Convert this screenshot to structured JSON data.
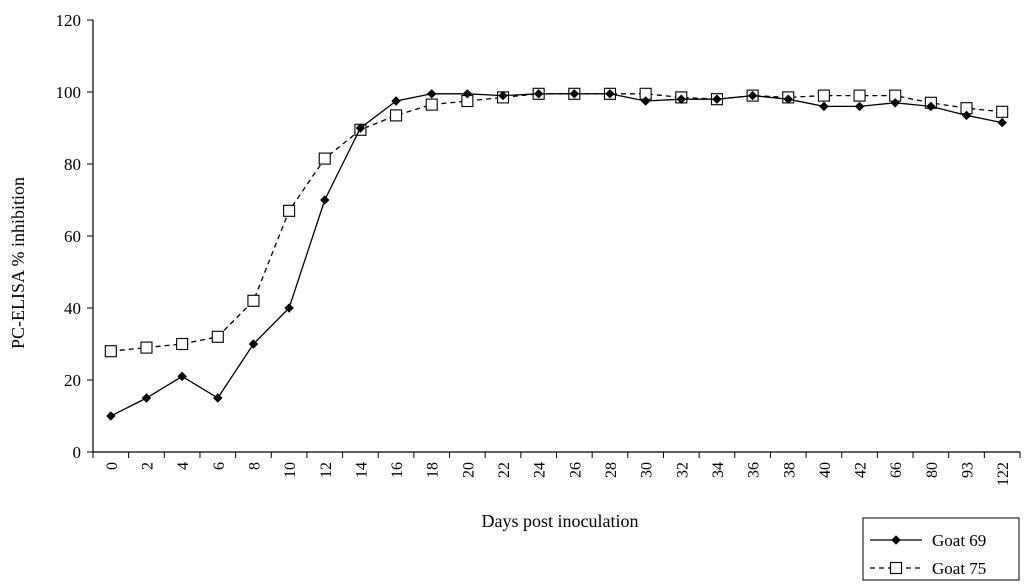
{
  "chart_data": {
    "type": "line",
    "xlabel": "Days post inoculation",
    "ylabel": "PC-ELISA % inhibition",
    "ylim": [
      0,
      120
    ],
    "yticks": [
      0,
      20,
      40,
      60,
      80,
      100,
      120
    ],
    "grid": false,
    "legend_position": "bottom-right",
    "categories": [
      "0",
      "2",
      "4",
      "6",
      "8",
      "10",
      "12",
      "14",
      "16",
      "18",
      "20",
      "22",
      "24",
      "26",
      "28",
      "30",
      "32",
      "34",
      "36",
      "38",
      "40",
      "42",
      "66",
      "80",
      "93",
      "122"
    ],
    "series": [
      {
        "name": "Goat 69",
        "marker": "diamond-filled",
        "line": "solid",
        "color": "#000000",
        "values": [
          10,
          15,
          21,
          15,
          30,
          40,
          70,
          90,
          97.5,
          99.5,
          99.5,
          99,
          99.5,
          99.5,
          99.5,
          97.5,
          98,
          98,
          99,
          98,
          96,
          96,
          97,
          96,
          93.5,
          91.5
        ]
      },
      {
        "name": "Goat 75",
        "marker": "square-open",
        "line": "dashed",
        "color": "#000000",
        "values": [
          28,
          29,
          30,
          32,
          42,
          67,
          81.5,
          89.5,
          93.5,
          96.5,
          97.5,
          98.5,
          99.5,
          99.5,
          99.5,
          99.5,
          98.5,
          98,
          99,
          98.5,
          99,
          99,
          99,
          97,
          95.5,
          94.5
        ]
      }
    ]
  }
}
